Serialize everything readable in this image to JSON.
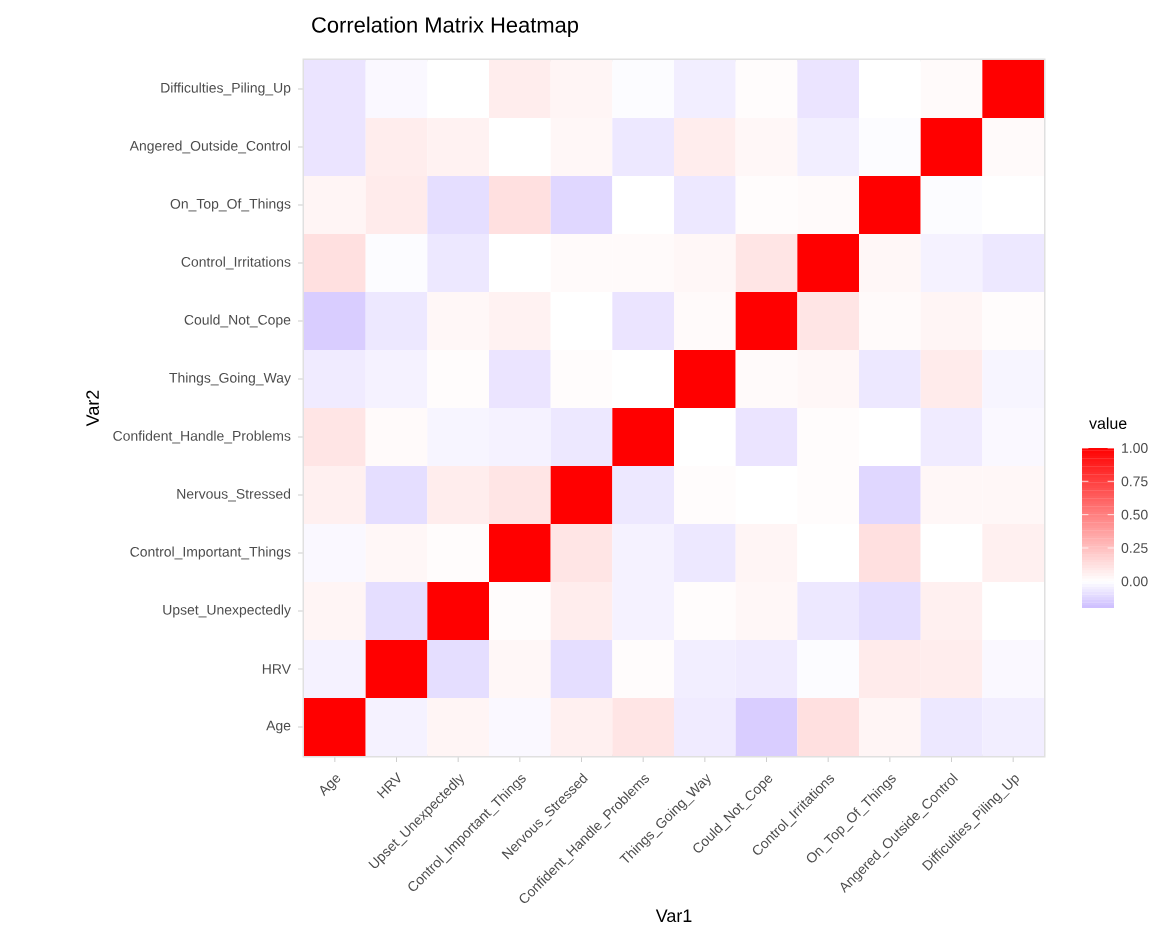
{
  "chart_data": {
    "type": "heatmap",
    "title": "Correlation Matrix Heatmap",
    "xlabel": "Var1",
    "ylabel": "Var2",
    "legend_title": "value",
    "categories": [
      "Age",
      "HRV",
      "Upset_Unexpectedly",
      "Control_Important_Things",
      "Nervous_Stressed",
      "Confident_Handle_Problems",
      "Things_Going_Way",
      "Could_Not_Cope",
      "Control_Irritations",
      "On_Top_Of_Things",
      "Angered_Outside_Control",
      "Difficulties_Piling_Up"
    ],
    "y_categories": [
      "Difficulties_Piling_Up",
      "Angered_Outside_Control",
      "On_Top_Of_Things",
      "Control_Irritations",
      "Could_Not_Cope",
      "Things_Going_Way",
      "Confident_Handle_Problems",
      "Nervous_Stressed",
      "Control_Important_Things",
      "Upset_Unexpectedly",
      "HRV",
      "Age"
    ],
    "cells": [
      [
        -0.08,
        -0.02,
        0,
        0.07,
        0.04,
        -0.01,
        -0.05,
        0.01,
        -0.08,
        0,
        0.02,
        1
      ],
      [
        -0.08,
        0.07,
        0.05,
        0,
        0.03,
        -0.07,
        0.07,
        0.03,
        -0.05,
        -0.01,
        1,
        0.02
      ],
      [
        0.04,
        0.08,
        -0.1,
        0.12,
        -0.12,
        0,
        -0.07,
        0.01,
        0.02,
        1,
        -0.01,
        0
      ],
      [
        0.12,
        -0.01,
        -0.07,
        0,
        0.02,
        0.02,
        0.03,
        0.1,
        1,
        0.03,
        -0.04,
        -0.07
      ],
      [
        -0.15,
        -0.07,
        0.03,
        0.05,
        0,
        -0.08,
        0.02,
        1,
        0.1,
        0.02,
        0.04,
        0.01
      ],
      [
        -0.06,
        -0.04,
        0.01,
        -0.08,
        0.01,
        0,
        1,
        0.02,
        0.03,
        -0.07,
        0.08,
        -0.03
      ],
      [
        0.1,
        0.02,
        -0.03,
        -0.04,
        -0.07,
        1,
        0,
        -0.08,
        0.01,
        0,
        -0.06,
        -0.02
      ],
      [
        0.06,
        -0.1,
        0.07,
        0.1,
        1,
        -0.07,
        0.01,
        0,
        0.01,
        -0.12,
        0.03,
        0.03
      ],
      [
        -0.02,
        0.03,
        0.01,
        1,
        0.1,
        -0.04,
        -0.07,
        0.04,
        0,
        0.12,
        0,
        0.06
      ],
      [
        0.04,
        -0.1,
        1,
        0.01,
        0.07,
        -0.04,
        0.01,
        0.03,
        -0.07,
        -0.1,
        0.06,
        0
      ],
      [
        -0.04,
        1,
        -0.1,
        0.03,
        -0.1,
        0.01,
        -0.05,
        -0.06,
        -0.01,
        0.08,
        0.07,
        -0.02
      ],
      [
        1,
        -0.04,
        0.04,
        -0.02,
        0.06,
        0.1,
        -0.06,
        -0.15,
        0.12,
        0.04,
        -0.07,
        -0.05
      ]
    ],
    "clim": [
      -0.2,
      1
    ],
    "cticks": [
      {
        "value": 0,
        "label": "0.00"
      },
      {
        "value": 0.25,
        "label": "0.25"
      },
      {
        "value": 0.5,
        "label": "0.50"
      },
      {
        "value": 0.75,
        "label": "0.75"
      },
      {
        "value": 1,
        "label": "1.00"
      }
    ]
  }
}
